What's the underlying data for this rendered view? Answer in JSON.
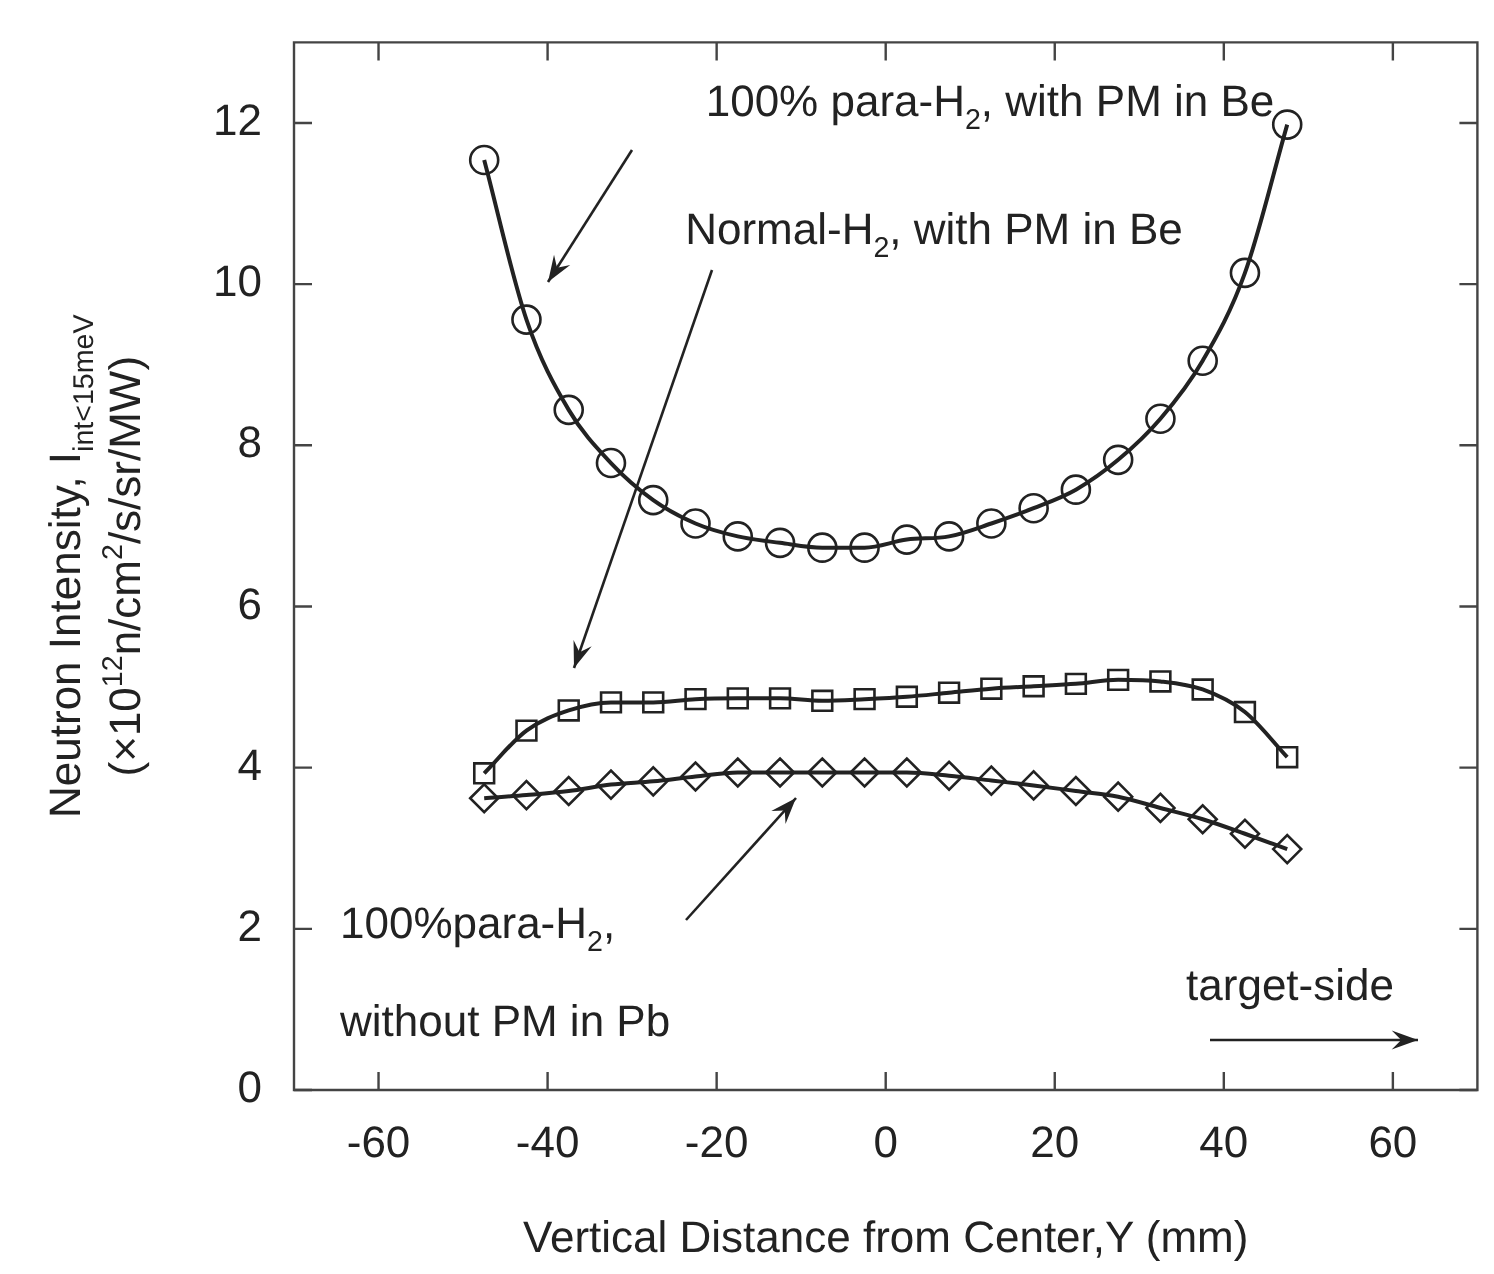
{
  "chart_data": {
    "type": "line",
    "xlabel": "Vertical Distance from Center,Y (mm)",
    "ylabel": "Neutron Intensity, I$_{int<15meV}$\n(×10$^{12}$n/cm$^{2}$/s/sr/MW)",
    "x": [
      -47.5,
      -42.5,
      -37.5,
      -32.5,
      -27.5,
      -22.5,
      -17.5,
      -12.5,
      -7.5,
      -2.5,
      2.5,
      7.5,
      12.5,
      17.5,
      22.5,
      27.5,
      32.5,
      37.5,
      42.5,
      47.5
    ],
    "series": [
      {
        "color": "#222222",
        "marker": "circle",
        "values": [
          11.54,
          9.56,
          8.44,
          7.78,
          7.32,
          7.03,
          6.87,
          6.79,
          6.73,
          6.73,
          6.83,
          6.87,
          7.03,
          7.22,
          7.45,
          7.82,
          8.33,
          9.05,
          10.14,
          11.98
        ]
      },
      {
        "color": "#222222",
        "marker": "square",
        "values": [
          3.93,
          4.46,
          4.71,
          4.81,
          4.81,
          4.85,
          4.86,
          4.86,
          4.83,
          4.85,
          4.88,
          4.93,
          4.98,
          5.01,
          5.04,
          5.09,
          5.07,
          4.97,
          4.69,
          4.13
        ]
      },
      {
        "color": "#222222",
        "marker": "diamond",
        "values": [
          3.62,
          3.66,
          3.71,
          3.79,
          3.83,
          3.89,
          3.94,
          3.94,
          3.94,
          3.94,
          3.94,
          3.9,
          3.84,
          3.78,
          3.71,
          3.64,
          3.5,
          3.36,
          3.18,
          2.99
        ]
      }
    ],
    "xlim": [
      -70,
      70
    ],
    "xticks": [
      -60,
      -40,
      -20,
      0,
      20,
      40,
      60
    ],
    "ylim": [
      0,
      13
    ],
    "yticks": [
      0,
      2,
      4,
      6,
      8,
      10,
      12
    ],
    "grid": false,
    "legend": false,
    "annotations": [
      "100% para-H$_{2}$, with PM in Be",
      "Normal-H$_{2}$, with PM in Be",
      "100%para-H$_{2}$,\nwithout PM in Pb",
      "target-side"
    ]
  }
}
